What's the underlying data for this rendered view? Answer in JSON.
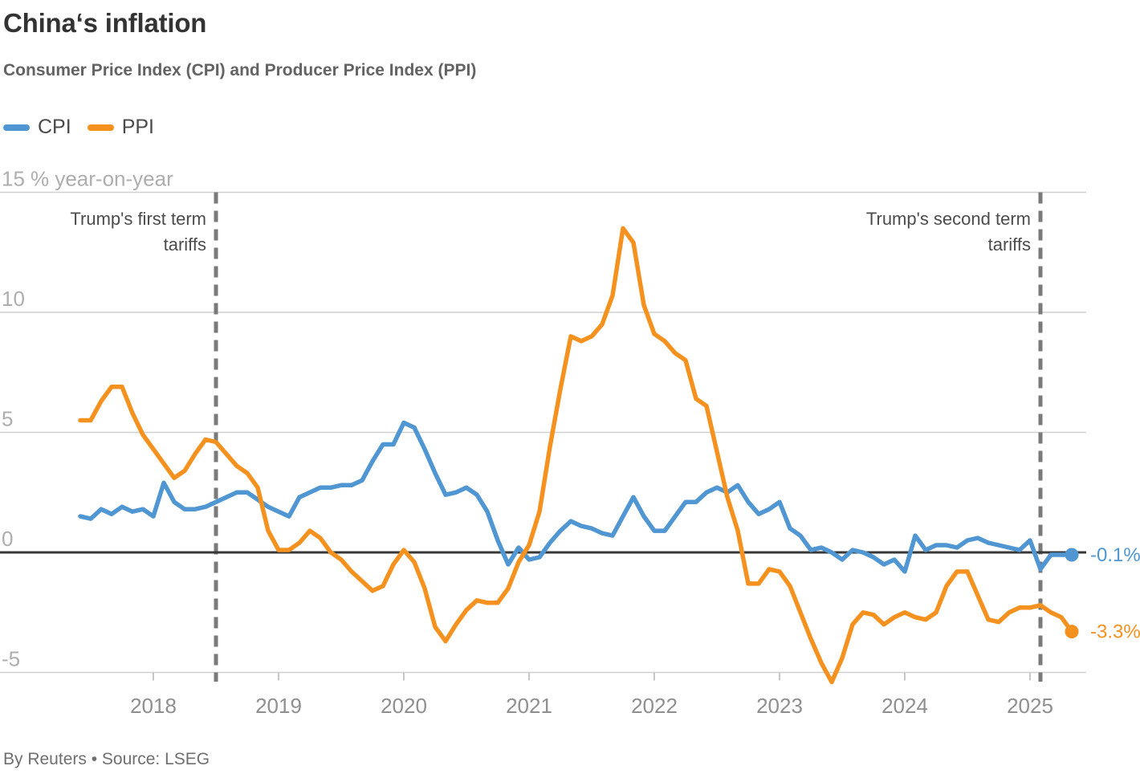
{
  "header": {
    "title": "China‘s inflation",
    "subtitle": "Consumer Price Index (CPI) and Producer Price Index (PPI)"
  },
  "legend": [
    {
      "label": "CPI",
      "color": "#4F96D2"
    },
    {
      "label": "PPI",
      "color": "#F5921F"
    }
  ],
  "footer": {
    "byline": "By Reuters • Source: LSEG"
  },
  "chart_data": {
    "type": "line",
    "title": "China‘s inflation",
    "subtitle": "Consumer Price Index (CPI) and Producer Price Index (PPI)",
    "unit_label": "% year-on-year",
    "x_start": "2017-06",
    "x_end": "2025-05",
    "x_frequency": "monthly",
    "xticks": [
      2018,
      2019,
      2020,
      2021,
      2022,
      2023,
      2024,
      2025
    ],
    "yticks": [
      15,
      10,
      5,
      0,
      -5
    ],
    "ylim": [
      -6.5,
      15
    ],
    "grid": true,
    "legend_position": "top-left",
    "series": [
      {
        "name": "CPI",
        "color": "#4F96D2",
        "end_label": "-0.1%",
        "values": [
          1.5,
          1.4,
          1.8,
          1.6,
          1.9,
          1.7,
          1.8,
          1.5,
          2.9,
          2.1,
          1.8,
          1.8,
          1.9,
          2.1,
          2.3,
          2.5,
          2.5,
          2.2,
          1.9,
          1.7,
          1.5,
          2.3,
          2.5,
          2.7,
          2.7,
          2.8,
          2.8,
          3.0,
          3.8,
          4.5,
          4.5,
          5.4,
          5.2,
          4.3,
          3.3,
          2.4,
          2.5,
          2.7,
          2.4,
          1.7,
          0.5,
          -0.5,
          0.2,
          -0.3,
          -0.2,
          0.4,
          0.9,
          1.3,
          1.1,
          1.0,
          0.8,
          0.7,
          1.5,
          2.3,
          1.5,
          0.9,
          0.9,
          1.5,
          2.1,
          2.1,
          2.5,
          2.7,
          2.5,
          2.8,
          2.1,
          1.6,
          1.8,
          2.1,
          1.0,
          0.7,
          0.1,
          0.2,
          0.0,
          -0.3,
          0.1,
          0.0,
          -0.2,
          -0.5,
          -0.3,
          -0.8,
          0.7,
          0.1,
          0.3,
          0.3,
          0.2,
          0.5,
          0.6,
          0.4,
          0.3,
          0.2,
          0.1,
          0.5,
          -0.7,
          -0.1,
          -0.1,
          -0.1
        ]
      },
      {
        "name": "PPI",
        "color": "#F5921F",
        "end_label": "-3.3%",
        "values": [
          5.5,
          5.5,
          6.3,
          6.9,
          6.9,
          5.8,
          4.9,
          4.3,
          3.7,
          3.1,
          3.4,
          4.1,
          4.7,
          4.6,
          4.1,
          3.6,
          3.3,
          2.7,
          0.9,
          0.1,
          0.1,
          0.4,
          0.9,
          0.6,
          0.0,
          -0.3,
          -0.8,
          -1.2,
          -1.6,
          -1.4,
          -0.5,
          0.1,
          -0.4,
          -1.5,
          -3.1,
          -3.7,
          -3.0,
          -2.4,
          -2.0,
          -2.1,
          -2.1,
          -1.5,
          -0.4,
          0.3,
          1.7,
          4.4,
          6.8,
          9.0,
          8.8,
          9.0,
          9.5,
          10.7,
          13.5,
          12.9,
          10.3,
          9.1,
          8.8,
          8.3,
          8.0,
          6.4,
          6.1,
          4.2,
          2.3,
          0.9,
          -1.3,
          -1.3,
          -0.7,
          -0.8,
          -1.4,
          -2.5,
          -3.6,
          -4.6,
          -5.4,
          -4.4,
          -3.0,
          -2.5,
          -2.6,
          -3.0,
          -2.7,
          -2.5,
          -2.7,
          -2.8,
          -2.5,
          -1.4,
          -0.8,
          -0.8,
          -1.8,
          -2.8,
          -2.9,
          -2.5,
          -2.3,
          -2.3,
          -2.2,
          -2.5,
          -2.7,
          -3.3
        ]
      }
    ],
    "annotations": [
      {
        "id": "first-term-tariffs",
        "date": "2018-07",
        "lines": [
          "Trump's first term",
          "tariffs"
        ]
      },
      {
        "id": "second-term-tariffs",
        "date": "2025-02",
        "lines": [
          "Trump's second term",
          "tariffs"
        ]
      }
    ]
  }
}
